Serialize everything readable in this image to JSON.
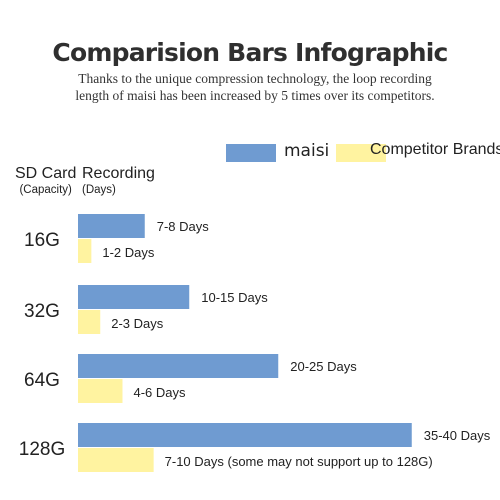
{
  "title": "Comparision Bars Infographic",
  "subtitle": "Thanks to the unique compression technology, the loop recording length of maisi has been increased by 5 times over its competitors.",
  "legend": [
    {
      "label": "maisi",
      "color": "#6f9bd1"
    },
    {
      "label": "Competitor Brands",
      "color": "#fff3a0"
    }
  ],
  "headers": {
    "capacity": "SD Card",
    "capacity_sub": "(Capacity)",
    "recording": "Recording",
    "recording_sub": "(Days)"
  },
  "chart_data": {
    "type": "bar",
    "orientation": "horizontal",
    "categories": [
      "16G",
      "32G",
      "64G",
      "128G"
    ],
    "series": [
      {
        "name": "maisi",
        "color": "#6f9bd1",
        "values": [
          7.5,
          12.5,
          22.5,
          37.5
        ],
        "labels": [
          "7-8 Days",
          "10-15 Days",
          "20-25 Days",
          "35-40 Days"
        ]
      },
      {
        "name": "Competitor Brands",
        "color": "#fff3a0",
        "values": [
          1.5,
          2.5,
          5,
          8.5
        ],
        "labels": [
          "1-2 Days",
          "2-3 Days",
          "4-6 Days",
          "7-10 Days (some may not support up to 128G)"
        ]
      }
    ],
    "xlim": [
      0,
      40
    ],
    "grid": false,
    "legend_position": "top-right"
  }
}
